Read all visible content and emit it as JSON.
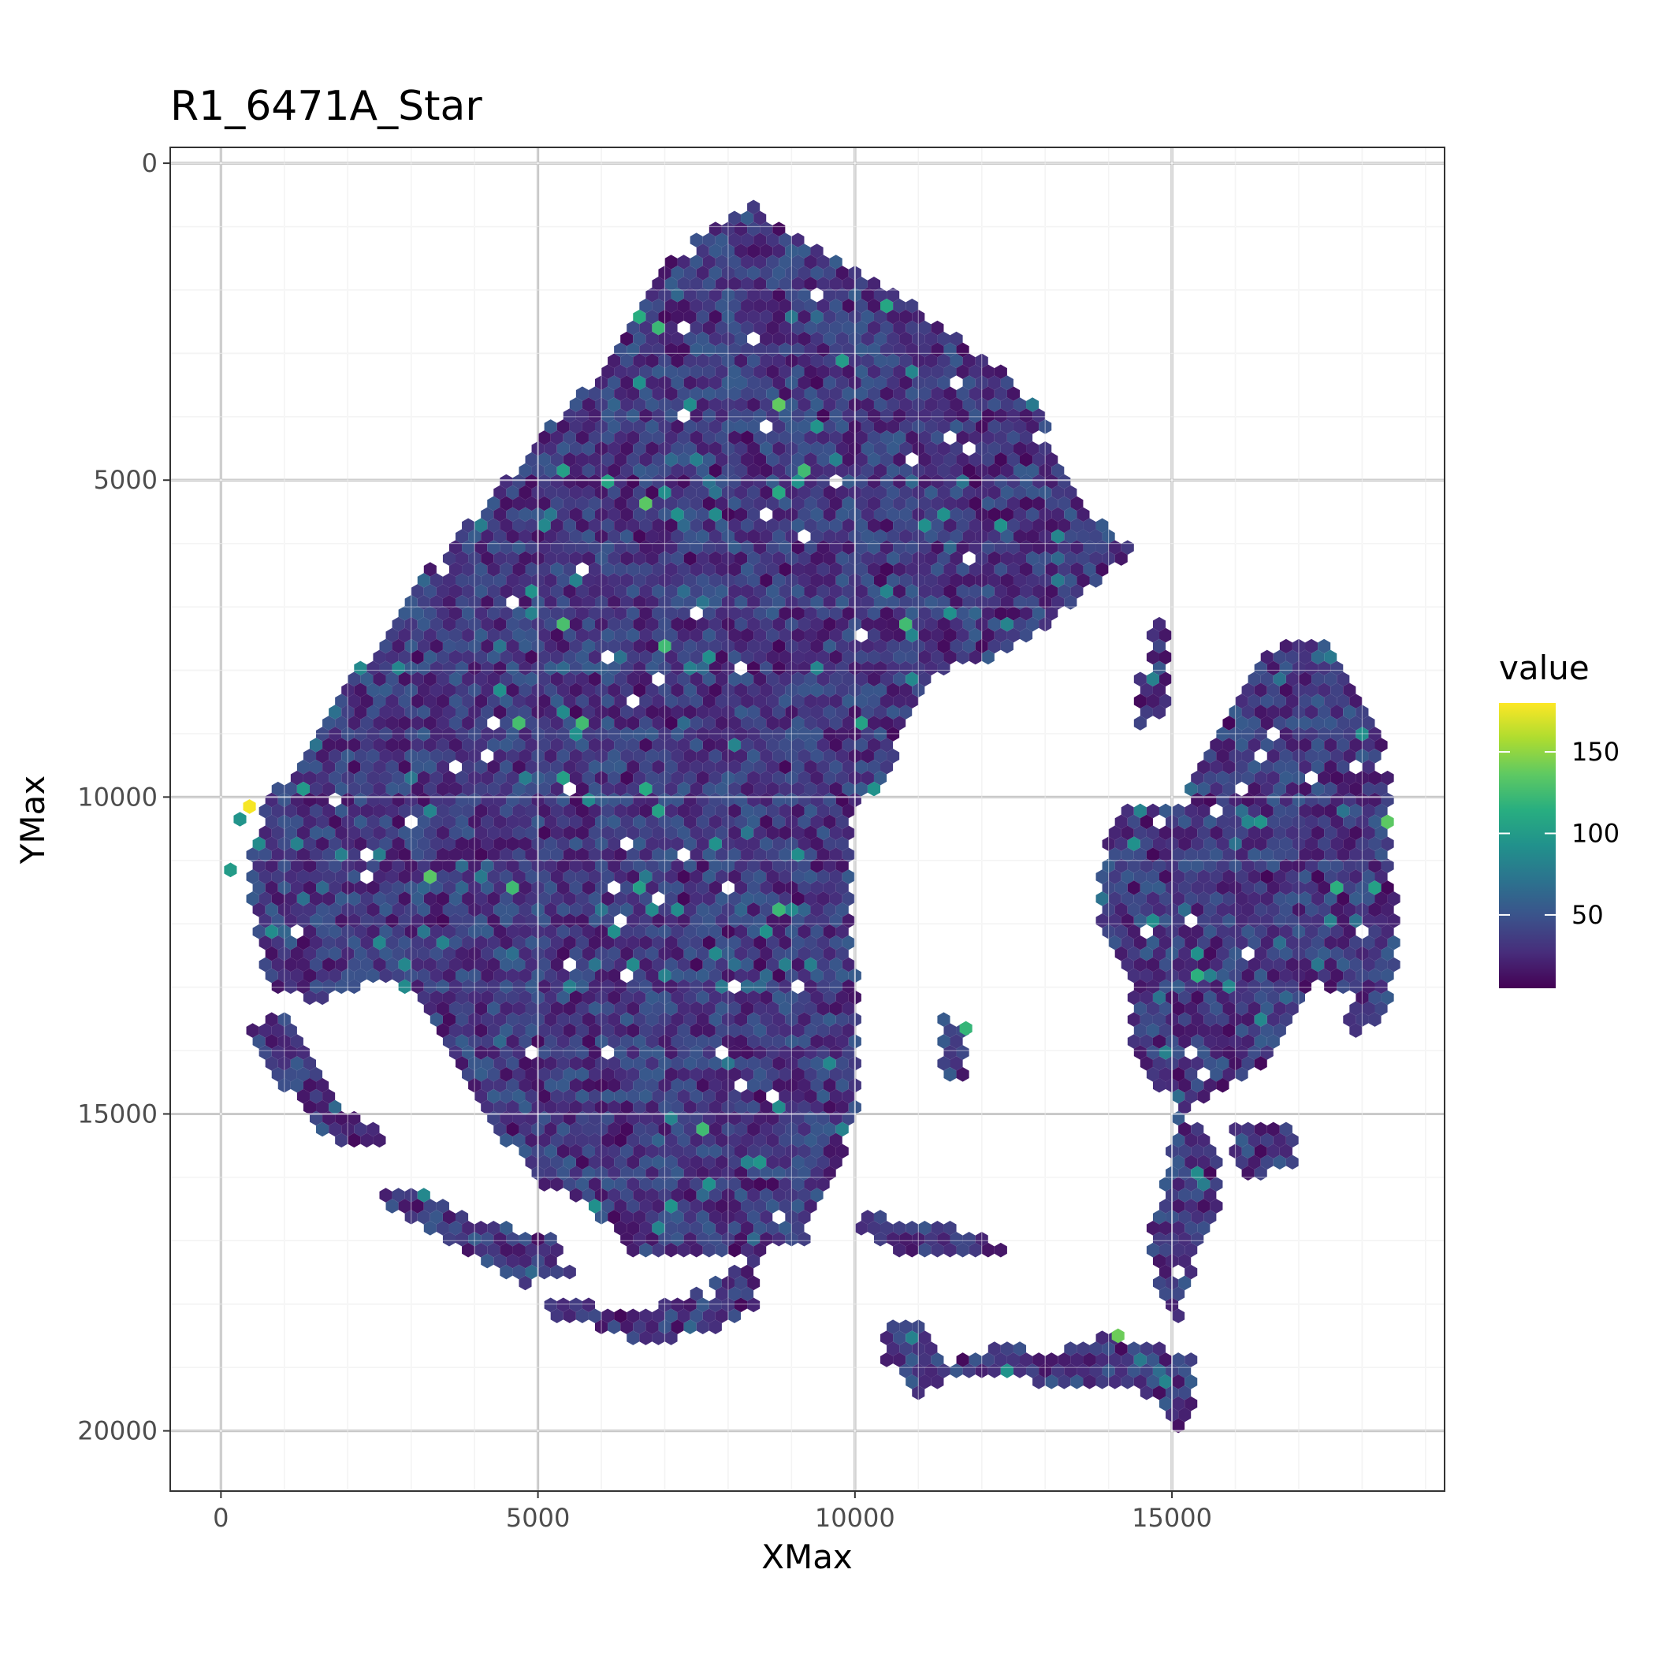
{
  "chart_data": {
    "type": "heatmap",
    "subtype": "hexbin",
    "title": "R1_6471A_Star",
    "xlabel": "XMax",
    "ylabel": "YMax",
    "xlim": [
      -800,
      19300
    ],
    "ylim": [
      -250,
      20950
    ],
    "y_reversed": true,
    "x_ticks": [
      0,
      5000,
      10000,
      15000
    ],
    "x_tick_labels": [
      "0",
      "5000",
      "10000",
      "15000"
    ],
    "y_ticks": [
      0,
      5000,
      10000,
      15000,
      20000
    ],
    "y_tick_labels": [
      "0",
      "5000",
      "10000",
      "15000",
      "20000"
    ],
    "grid": true,
    "hex_spacing": 200,
    "legend": {
      "title": "value",
      "position": "right",
      "range": [
        5,
        180
      ],
      "ticks": [
        50,
        100,
        150
      ],
      "tick_labels": [
        "50",
        "100",
        "150"
      ],
      "colormap": "viridis"
    },
    "value_distribution": {
      "typical_range": [
        10,
        60
      ],
      "max": 180
    },
    "regions": [
      {
        "name": "main-tissue",
        "outline": [
          [
            8400,
            650
          ],
          [
            9100,
            1200
          ],
          [
            10200,
            1800
          ],
          [
            11000,
            2300
          ],
          [
            11800,
            2900
          ],
          [
            12600,
            3500
          ],
          [
            13000,
            4100
          ],
          [
            13300,
            4900
          ],
          [
            13800,
            5600
          ],
          [
            14350,
            6100
          ],
          [
            13600,
            6800
          ],
          [
            13100,
            7300
          ],
          [
            12200,
            7800
          ],
          [
            11400,
            8000
          ],
          [
            10800,
            8700
          ],
          [
            10500,
            9700
          ],
          [
            9900,
            10300
          ],
          [
            9950,
            11500
          ],
          [
            10000,
            12800
          ],
          [
            10050,
            14200
          ],
          [
            10000,
            15200
          ],
          [
            9500,
            16200
          ],
          [
            9200,
            17100
          ],
          [
            8000,
            17200
          ],
          [
            6500,
            17300
          ],
          [
            5800,
            16400
          ],
          [
            5000,
            16100
          ],
          [
            4400,
            15300
          ],
          [
            3800,
            14300
          ],
          [
            3200,
            13300
          ],
          [
            2500,
            12800
          ],
          [
            1500,
            13300
          ],
          [
            700,
            12900
          ],
          [
            400,
            11000
          ],
          [
            700,
            10100
          ],
          [
            1300,
            9300
          ],
          [
            1800,
            8500
          ],
          [
            2600,
            7400
          ],
          [
            3500,
            6100
          ],
          [
            4500,
            5000
          ],
          [
            5300,
            4000
          ],
          [
            6200,
            3100
          ],
          [
            7100,
            1500
          ],
          [
            7600,
            1100
          ]
        ]
      },
      {
        "name": "right-lobe",
        "outline": [
          [
            16900,
            7400
          ],
          [
            17600,
            7700
          ],
          [
            18200,
            8800
          ],
          [
            18500,
            9900
          ],
          [
            18500,
            11300
          ],
          [
            18600,
            12500
          ],
          [
            18300,
            13600
          ],
          [
            17700,
            13800
          ],
          [
            17900,
            13200
          ],
          [
            17300,
            12900
          ],
          [
            16900,
            13400
          ],
          [
            16600,
            14100
          ],
          [
            15800,
            14600
          ],
          [
            15200,
            14900
          ],
          [
            14600,
            14500
          ],
          [
            14300,
            13800
          ],
          [
            14400,
            13100
          ],
          [
            13900,
            12200
          ],
          [
            13900,
            11000
          ],
          [
            14200,
            10100
          ],
          [
            15200,
            10200
          ],
          [
            15500,
            9200
          ],
          [
            16000,
            8400
          ],
          [
            16400,
            7800
          ]
        ]
      },
      {
        "name": "lower-right-strip",
        "outline": [
          [
            15100,
            15000
          ],
          [
            15800,
            15500
          ],
          [
            15700,
            16500
          ],
          [
            15400,
            17300
          ],
          [
            15100,
            18200
          ],
          [
            14800,
            17800
          ],
          [
            14650,
            16900
          ],
          [
            14900,
            15900
          ]
        ]
      },
      {
        "name": "right-lower-block",
        "outline": [
          [
            15900,
            15200
          ],
          [
            16900,
            15200
          ],
          [
            17000,
            15900
          ],
          [
            16100,
            16000
          ]
        ]
      },
      {
        "name": "right-fingers",
        "outline": [
          [
            14800,
            7200
          ],
          [
            15000,
            7400
          ],
          [
            15000,
            8700
          ],
          [
            14400,
            8900
          ],
          [
            14500,
            7900
          ]
        ]
      },
      {
        "name": "left-flank",
        "outline": [
          [
            400,
            13600
          ],
          [
            1000,
            13400
          ],
          [
            1400,
            14200
          ],
          [
            1900,
            14900
          ],
          [
            2500,
            15200
          ],
          [
            2600,
            15600
          ],
          [
            1800,
            15500
          ],
          [
            1200,
            14800
          ],
          [
            700,
            14200
          ]
        ]
      },
      {
        "name": "bottom-left-arc",
        "outline": [
          [
            2600,
            16100
          ],
          [
            3300,
            16300
          ],
          [
            4100,
            16700
          ],
          [
            5200,
            16900
          ],
          [
            5600,
            17500
          ],
          [
            4700,
            17700
          ],
          [
            3800,
            17200
          ],
          [
            3100,
            16700
          ],
          [
            2600,
            16400
          ]
        ]
      },
      {
        "name": "bottom-chain",
        "outline": [
          [
            5200,
            17900
          ],
          [
            6300,
            18100
          ],
          [
            7100,
            18000
          ],
          [
            7800,
            17600
          ],
          [
            8400,
            17200
          ],
          [
            8500,
            18000
          ],
          [
            7600,
            18500
          ],
          [
            6600,
            18600
          ],
          [
            5800,
            18300
          ],
          [
            5200,
            18200
          ]
        ]
      },
      {
        "name": "bottom-right-strip",
        "outline": [
          [
            10100,
            16600
          ],
          [
            11300,
            16700
          ],
          [
            11900,
            16900
          ],
          [
            12500,
            17100
          ],
          [
            11700,
            17300
          ],
          [
            10600,
            17200
          ],
          [
            10100,
            16900
          ]
        ]
      },
      {
        "name": "bottom-bar",
        "outline": [
          [
            10500,
            18200
          ],
          [
            11200,
            18400
          ],
          [
            11500,
            18900
          ],
          [
            12300,
            18600
          ],
          [
            13000,
            18800
          ],
          [
            14000,
            18500
          ],
          [
            14700,
            18600
          ],
          [
            15400,
            18900
          ],
          [
            15400,
            19500
          ],
          [
            15200,
            20000
          ],
          [
            14900,
            19800
          ],
          [
            14500,
            19300
          ],
          [
            13500,
            19300
          ],
          [
            12600,
            19200
          ],
          [
            11800,
            19100
          ],
          [
            11000,
            19400
          ],
          [
            10500,
            18900
          ]
        ]
      },
      {
        "name": "middle-islands",
        "outline": [
          [
            11400,
            13500
          ],
          [
            11800,
            13700
          ],
          [
            11700,
            14400
          ],
          [
            11300,
            14500
          ]
        ]
      }
    ]
  }
}
